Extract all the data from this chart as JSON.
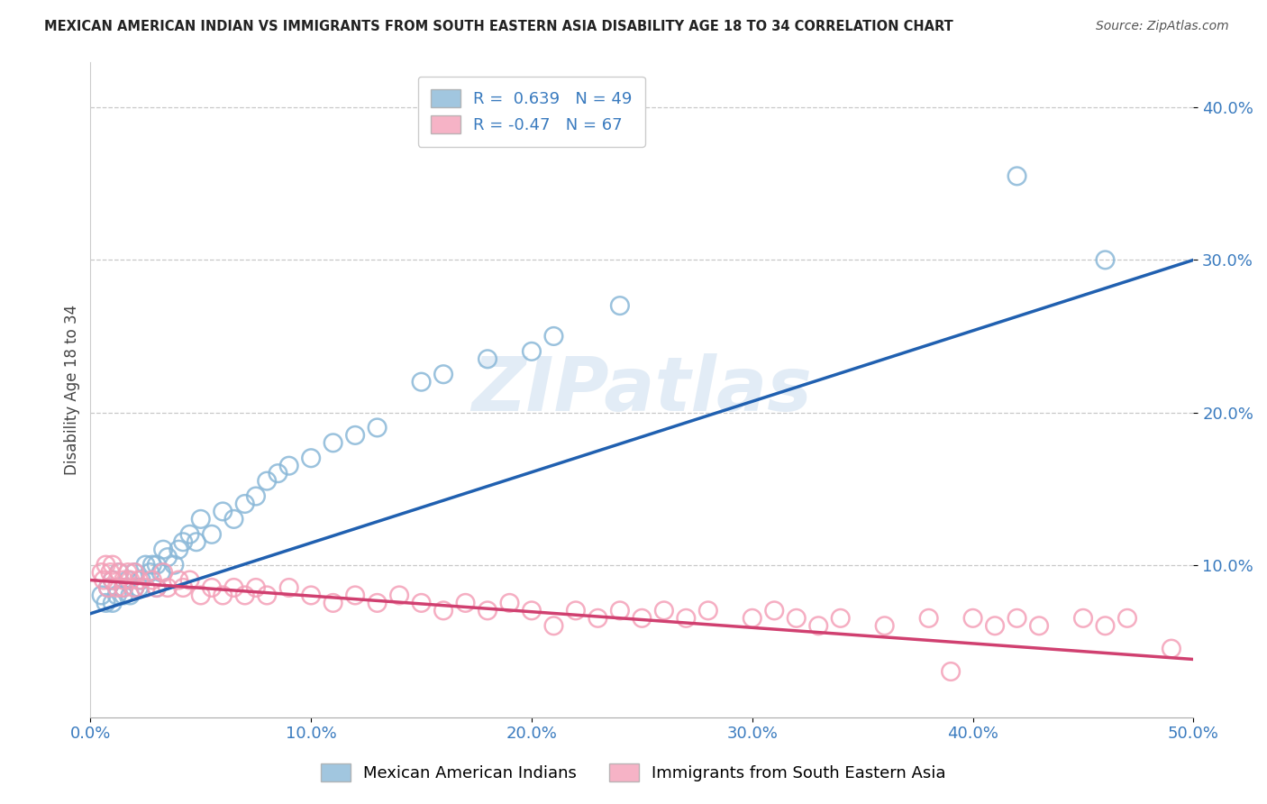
{
  "title": "MEXICAN AMERICAN INDIAN VS IMMIGRANTS FROM SOUTH EASTERN ASIA DISABILITY AGE 18 TO 34 CORRELATION CHART",
  "source": "Source: ZipAtlas.com",
  "ylabel": "Disability Age 18 to 34",
  "xlim": [
    0.0,
    0.5
  ],
  "ylim": [
    0.0,
    0.43
  ],
  "xticks": [
    0.0,
    0.1,
    0.2,
    0.3,
    0.4,
    0.5
  ],
  "yticks": [
    0.1,
    0.2,
    0.3,
    0.4
  ],
  "xtick_labels": [
    "0.0%",
    "10.0%",
    "20.0%",
    "30.0%",
    "40.0%",
    "50.0%"
  ],
  "ytick_labels": [
    "10.0%",
    "20.0%",
    "30.0%",
    "40.0%"
  ],
  "series1_name": "Mexican American Indians",
  "series1_color": "#8ab8d8",
  "series1_R": 0.639,
  "series1_N": 49,
  "series1_trend_color": "#2060b0",
  "series2_name": "Immigrants from South Eastern Asia",
  "series2_color": "#f4a0b8",
  "series2_R": -0.47,
  "series2_N": 67,
  "series2_trend_color": "#d04070",
  "background_color": "#ffffff",
  "grid_color": "#c8c8c8",
  "watermark": "ZIPatlas",
  "blue_x": [
    0.005,
    0.007,
    0.008,
    0.01,
    0.01,
    0.012,
    0.013,
    0.015,
    0.015,
    0.017,
    0.018,
    0.02,
    0.02,
    0.022,
    0.023,
    0.025,
    0.027,
    0.028,
    0.03,
    0.03,
    0.032,
    0.033,
    0.035,
    0.038,
    0.04,
    0.042,
    0.045,
    0.048,
    0.05,
    0.055,
    0.06,
    0.065,
    0.07,
    0.075,
    0.08,
    0.085,
    0.09,
    0.1,
    0.11,
    0.12,
    0.13,
    0.15,
    0.16,
    0.18,
    0.2,
    0.21,
    0.24,
    0.42,
    0.46
  ],
  "blue_y": [
    0.08,
    0.075,
    0.085,
    0.075,
    0.09,
    0.08,
    0.095,
    0.08,
    0.085,
    0.09,
    0.08,
    0.085,
    0.095,
    0.085,
    0.09,
    0.1,
    0.095,
    0.1,
    0.085,
    0.1,
    0.095,
    0.11,
    0.105,
    0.1,
    0.11,
    0.115,
    0.12,
    0.115,
    0.13,
    0.12,
    0.135,
    0.13,
    0.14,
    0.145,
    0.155,
    0.16,
    0.165,
    0.17,
    0.18,
    0.185,
    0.19,
    0.22,
    0.225,
    0.235,
    0.24,
    0.25,
    0.27,
    0.355,
    0.3
  ],
  "pink_x": [
    0.005,
    0.006,
    0.007,
    0.008,
    0.009,
    0.01,
    0.01,
    0.012,
    0.013,
    0.015,
    0.015,
    0.017,
    0.018,
    0.02,
    0.02,
    0.022,
    0.025,
    0.028,
    0.03,
    0.033,
    0.035,
    0.04,
    0.042,
    0.045,
    0.05,
    0.055,
    0.06,
    0.065,
    0.07,
    0.075,
    0.08,
    0.09,
    0.1,
    0.11,
    0.12,
    0.13,
    0.14,
    0.15,
    0.16,
    0.17,
    0.18,
    0.19,
    0.2,
    0.21,
    0.22,
    0.23,
    0.24,
    0.25,
    0.26,
    0.27,
    0.28,
    0.3,
    0.31,
    0.32,
    0.33,
    0.34,
    0.36,
    0.38,
    0.39,
    0.4,
    0.41,
    0.42,
    0.43,
    0.45,
    0.46,
    0.47,
    0.49
  ],
  "pink_y": [
    0.095,
    0.09,
    0.1,
    0.085,
    0.095,
    0.09,
    0.1,
    0.085,
    0.095,
    0.09,
    0.085,
    0.095,
    0.09,
    0.085,
    0.095,
    0.09,
    0.085,
    0.09,
    0.085,
    0.095,
    0.085,
    0.09,
    0.085,
    0.09,
    0.08,
    0.085,
    0.08,
    0.085,
    0.08,
    0.085,
    0.08,
    0.085,
    0.08,
    0.075,
    0.08,
    0.075,
    0.08,
    0.075,
    0.07,
    0.075,
    0.07,
    0.075,
    0.07,
    0.06,
    0.07,
    0.065,
    0.07,
    0.065,
    0.07,
    0.065,
    0.07,
    0.065,
    0.07,
    0.065,
    0.06,
    0.065,
    0.06,
    0.065,
    0.03,
    0.065,
    0.06,
    0.065,
    0.06,
    0.065,
    0.06,
    0.065,
    0.045
  ],
  "blue_trend_x": [
    0.0,
    0.5
  ],
  "blue_trend_y": [
    0.068,
    0.3
  ],
  "pink_trend_x": [
    0.0,
    0.5
  ],
  "pink_trend_y": [
    0.09,
    0.038
  ]
}
